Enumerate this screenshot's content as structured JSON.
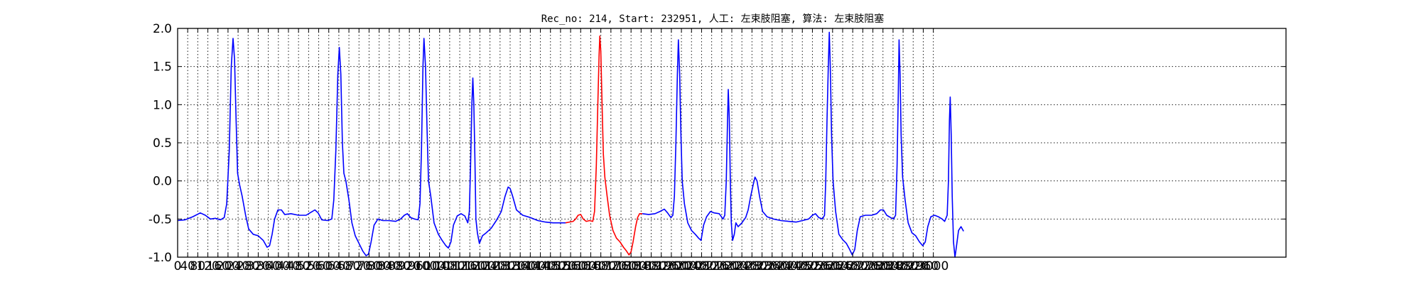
{
  "chart_data": {
    "type": "line",
    "title": "Rec_no: 214, Start: 232951, 人工: 左束肢阻塞, 算法: 左束肢阻塞",
    "xlabel": "",
    "ylabel": "",
    "xlim": [
      0,
      4400
    ],
    "ylim": [
      -1.0,
      2.0
    ],
    "grid": true,
    "yticks": [
      "2.0",
      "1.5",
      "1.0",
      "0.5",
      "0.0",
      "-0.5",
      "-1.0"
    ],
    "xticks": [
      "0",
      "40",
      "80",
      "120",
      "160",
      "200",
      "240",
      "280",
      "320",
      "360",
      "400",
      "440",
      "480",
      "520",
      "560",
      "600",
      "640",
      "680",
      "720",
      "760",
      "800",
      "840",
      "880",
      "920",
      "960",
      "1000",
      "1040",
      "1080",
      "1120",
      "1160",
      "1200",
      "1240",
      "1280",
      "1320",
      "1360",
      "1400",
      "1440",
      "1480",
      "1520",
      "1560",
      "1600",
      "1640",
      "1680",
      "1720",
      "1760",
      "1800",
      "1840",
      "1880",
      "1920",
      "1960",
      "2000",
      "2040",
      "2080",
      "2120",
      "2160",
      "2200",
      "2240",
      "2280",
      "2320",
      "2360",
      "2400",
      "2440",
      "2480",
      "2520",
      "2560",
      "2600",
      "2640",
      "2680",
      "2720",
      "2760",
      "2800",
      "2840",
      "2880",
      "2920",
      "2960",
      "3000"
    ],
    "series": [
      {
        "color": "#0000ff",
        "points": [
          [
            0,
            -0.52
          ],
          [
            30,
            -0.51
          ],
          [
            60,
            -0.47
          ],
          [
            90,
            -0.42
          ],
          [
            110,
            -0.45
          ],
          [
            130,
            -0.5
          ],
          [
            150,
            -0.49
          ],
          [
            170,
            -0.51
          ],
          [
            185,
            -0.48
          ],
          [
            195,
            -0.3
          ],
          [
            205,
            0.4
          ],
          [
            213,
            1.5
          ],
          [
            220,
            1.87
          ],
          [
            226,
            1.6
          ],
          [
            232,
            0.8
          ],
          [
            238,
            0.1
          ],
          [
            246,
            -0.05
          ],
          [
            256,
            -0.2
          ],
          [
            270,
            -0.45
          ],
          [
            282,
            -0.63
          ],
          [
            300,
            -0.7
          ],
          [
            320,
            -0.72
          ],
          [
            340,
            -0.78
          ],
          [
            355,
            -0.87
          ],
          [
            365,
            -0.85
          ],
          [
            375,
            -0.7
          ],
          [
            385,
            -0.5
          ],
          [
            398,
            -0.38
          ],
          [
            412,
            -0.38
          ],
          [
            425,
            -0.44
          ],
          [
            450,
            -0.43
          ],
          [
            480,
            -0.45
          ],
          [
            510,
            -0.45
          ],
          [
            530,
            -0.41
          ],
          [
            545,
            -0.38
          ],
          [
            558,
            -0.42
          ],
          [
            572,
            -0.51
          ],
          [
            595,
            -0.52
          ],
          [
            612,
            -0.5
          ],
          [
            620,
            -0.25
          ],
          [
            628,
            0.4
          ],
          [
            636,
            1.4
          ],
          [
            642,
            1.75
          ],
          [
            648,
            1.4
          ],
          [
            654,
            0.5
          ],
          [
            660,
            0.1
          ],
          [
            668,
            0.0
          ],
          [
            680,
            -0.25
          ],
          [
            692,
            -0.55
          ],
          [
            705,
            -0.72
          ],
          [
            720,
            -0.82
          ],
          [
            735,
            -0.92
          ],
          [
            748,
            -0.98
          ],
          [
            758,
            -0.96
          ],
          [
            768,
            -0.8
          ],
          [
            780,
            -0.58
          ],
          [
            795,
            -0.5
          ],
          [
            815,
            -0.52
          ],
          [
            840,
            -0.52
          ],
          [
            865,
            -0.53
          ],
          [
            885,
            -0.5
          ],
          [
            900,
            -0.45
          ],
          [
            912,
            -0.43
          ],
          [
            925,
            -0.48
          ],
          [
            940,
            -0.5
          ],
          [
            955,
            -0.51
          ],
          [
            962,
            -0.3
          ],
          [
            968,
            0.4
          ],
          [
            974,
            1.5
          ],
          [
            978,
            1.87
          ],
          [
            984,
            1.5
          ],
          [
            990,
            0.7
          ],
          [
            996,
            0.0
          ],
          [
            1005,
            -0.2
          ],
          [
            1018,
            -0.55
          ],
          [
            1035,
            -0.7
          ],
          [
            1050,
            -0.78
          ],
          [
            1065,
            -0.85
          ],
          [
            1075,
            -0.88
          ],
          [
            1085,
            -0.8
          ],
          [
            1095,
            -0.58
          ],
          [
            1110,
            -0.46
          ],
          [
            1125,
            -0.43
          ],
          [
            1140,
            -0.46
          ],
          [
            1152,
            -0.55
          ],
          [
            1158,
            -0.4
          ],
          [
            1163,
            0.2
          ],
          [
            1168,
            1.0
          ],
          [
            1172,
            1.35
          ],
          [
            1176,
            1.0
          ],
          [
            1180,
            0.3
          ],
          [
            1184,
            -0.5
          ],
          [
            1190,
            -0.68
          ],
          [
            1198,
            -0.82
          ],
          [
            1210,
            -0.72
          ],
          [
            1225,
            -0.68
          ],
          [
            1245,
            -0.62
          ],
          [
            1265,
            -0.52
          ],
          [
            1285,
            -0.4
          ],
          [
            1300,
            -0.2
          ],
          [
            1312,
            -0.08
          ],
          [
            1320,
            -0.1
          ],
          [
            1330,
            -0.2
          ],
          [
            1345,
            -0.38
          ],
          [
            1370,
            -0.45
          ],
          [
            1400,
            -0.48
          ],
          [
            1430,
            -0.52
          ],
          [
            1460,
            -0.54
          ],
          [
            1490,
            -0.55
          ],
          [
            1520,
            -0.55
          ],
          [
            1540,
            -0.55
          ]
        ]
      },
      {
        "color": "#ff0000",
        "points": [
          [
            1540,
            -0.55
          ],
          [
            1555,
            -0.54
          ],
          [
            1570,
            -0.53
          ],
          [
            1580,
            -0.5
          ],
          [
            1590,
            -0.45
          ],
          [
            1600,
            -0.44
          ],
          [
            1610,
            -0.5
          ],
          [
            1622,
            -0.53
          ],
          [
            1635,
            -0.52
          ],
          [
            1648,
            -0.53
          ],
          [
            1655,
            -0.4
          ],
          [
            1662,
            0.2
          ],
          [
            1668,
            1.0
          ],
          [
            1673,
            1.65
          ],
          [
            1676,
            1.9
          ],
          [
            1680,
            1.7
          ],
          [
            1685,
            1.0
          ],
          [
            1690,
            0.35
          ],
          [
            1696,
            0.05
          ],
          [
            1705,
            -0.2
          ],
          [
            1715,
            -0.45
          ],
          [
            1728,
            -0.65
          ],
          [
            1742,
            -0.75
          ],
          [
            1756,
            -0.8
          ],
          [
            1770,
            -0.87
          ],
          [
            1782,
            -0.92
          ],
          [
            1792,
            -0.97
          ],
          [
            1800,
            -0.93
          ],
          [
            1808,
            -0.8
          ],
          [
            1818,
            -0.6
          ],
          [
            1826,
            -0.48
          ],
          [
            1834,
            -0.43
          ],
          [
            1845,
            -0.43
          ]
        ]
      },
      {
        "color": "#0000ff",
        "points": [
          [
            1845,
            -0.43
          ],
          [
            1870,
            -0.44
          ],
          [
            1895,
            -0.43
          ],
          [
            1915,
            -0.4
          ],
          [
            1932,
            -0.37
          ],
          [
            1945,
            -0.42
          ],
          [
            1958,
            -0.48
          ],
          [
            1966,
            -0.45
          ],
          [
            1972,
            -0.2
          ],
          [
            1978,
            0.5
          ],
          [
            1984,
            1.4
          ],
          [
            1988,
            1.85
          ],
          [
            1993,
            1.4
          ],
          [
            1998,
            0.6
          ],
          [
            2003,
            0.0
          ],
          [
            2012,
            -0.3
          ],
          [
            2025,
            -0.55
          ],
          [
            2040,
            -0.65
          ],
          [
            2055,
            -0.7
          ],
          [
            2068,
            -0.75
          ],
          [
            2078,
            -0.78
          ],
          [
            2088,
            -0.58
          ],
          [
            2100,
            -0.47
          ],
          [
            2115,
            -0.4
          ],
          [
            2130,
            -0.42
          ],
          [
            2150,
            -0.43
          ],
          [
            2165,
            -0.5
          ],
          [
            2172,
            -0.45
          ],
          [
            2178,
            0.0
          ],
          [
            2183,
            0.8
          ],
          [
            2186,
            1.2
          ],
          [
            2190,
            0.8
          ],
          [
            2194,
            0.0
          ],
          [
            2198,
            -0.55
          ],
          [
            2203,
            -0.78
          ],
          [
            2210,
            -0.7
          ],
          [
            2216,
            -0.55
          ],
          [
            2225,
            -0.6
          ],
          [
            2240,
            -0.55
          ],
          [
            2255,
            -0.48
          ],
          [
            2265,
            -0.38
          ],
          [
            2275,
            -0.2
          ],
          [
            2285,
            -0.05
          ],
          [
            2292,
            0.05
          ],
          [
            2300,
            0.0
          ],
          [
            2310,
            -0.2
          ],
          [
            2322,
            -0.4
          ],
          [
            2340,
            -0.47
          ],
          [
            2365,
            -0.5
          ],
          [
            2395,
            -0.52
          ],
          [
            2425,
            -0.53
          ],
          [
            2455,
            -0.54
          ],
          [
            2480,
            -0.52
          ],
          [
            2505,
            -0.5
          ],
          [
            2520,
            -0.45
          ],
          [
            2532,
            -0.43
          ],
          [
            2545,
            -0.48
          ],
          [
            2560,
            -0.5
          ],
          [
            2568,
            -0.45
          ],
          [
            2573,
            0.0
          ],
          [
            2578,
            0.8
          ],
          [
            2583,
            1.5
          ],
          [
            2587,
            1.95
          ],
          [
            2591,
            1.5
          ],
          [
            2596,
            0.6
          ],
          [
            2602,
            0.0
          ],
          [
            2612,
            -0.4
          ],
          [
            2625,
            -0.7
          ],
          [
            2640,
            -0.77
          ],
          [
            2655,
            -0.82
          ],
          [
            2668,
            -0.9
          ],
          [
            2678,
            -0.97
          ],
          [
            2688,
            -0.9
          ],
          [
            2698,
            -0.65
          ],
          [
            2710,
            -0.47
          ],
          [
            2730,
            -0.45
          ],
          [
            2755,
            -0.45
          ],
          [
            2775,
            -0.43
          ],
          [
            2790,
            -0.38
          ],
          [
            2802,
            -0.38
          ],
          [
            2815,
            -0.45
          ],
          [
            2830,
            -0.48
          ],
          [
            2842,
            -0.5
          ],
          [
            2850,
            -0.45
          ],
          [
            2856,
            0.2
          ],
          [
            2861,
            1.2
          ],
          [
            2864,
            1.85
          ],
          [
            2868,
            1.4
          ],
          [
            2872,
            0.6
          ],
          [
            2878,
            0.05
          ],
          [
            2888,
            -0.25
          ],
          [
            2900,
            -0.55
          ],
          [
            2915,
            -0.68
          ],
          [
            2930,
            -0.72
          ],
          [
            2945,
            -0.8
          ],
          [
            2958,
            -0.85
          ],
          [
            2968,
            -0.8
          ],
          [
            2978,
            -0.6
          ],
          [
            2990,
            -0.47
          ],
          [
            3005,
            -0.45
          ],
          [
            3020,
            -0.47
          ],
          [
            3035,
            -0.5
          ],
          [
            3045,
            -0.53
          ],
          [
            3055,
            -0.45
          ],
          [
            3060,
            0.0
          ],
          [
            3064,
            0.8
          ],
          [
            3067,
            1.1
          ],
          [
            3071,
            0.6
          ],
          [
            3075,
            -0.2
          ],
          [
            3080,
            -0.8
          ],
          [
            3086,
            -1.0
          ],
          [
            3092,
            -0.85
          ],
          [
            3100,
            -0.65
          ],
          [
            3110,
            -0.6
          ],
          [
            3120,
            -0.66
          ]
        ]
      }
    ]
  }
}
